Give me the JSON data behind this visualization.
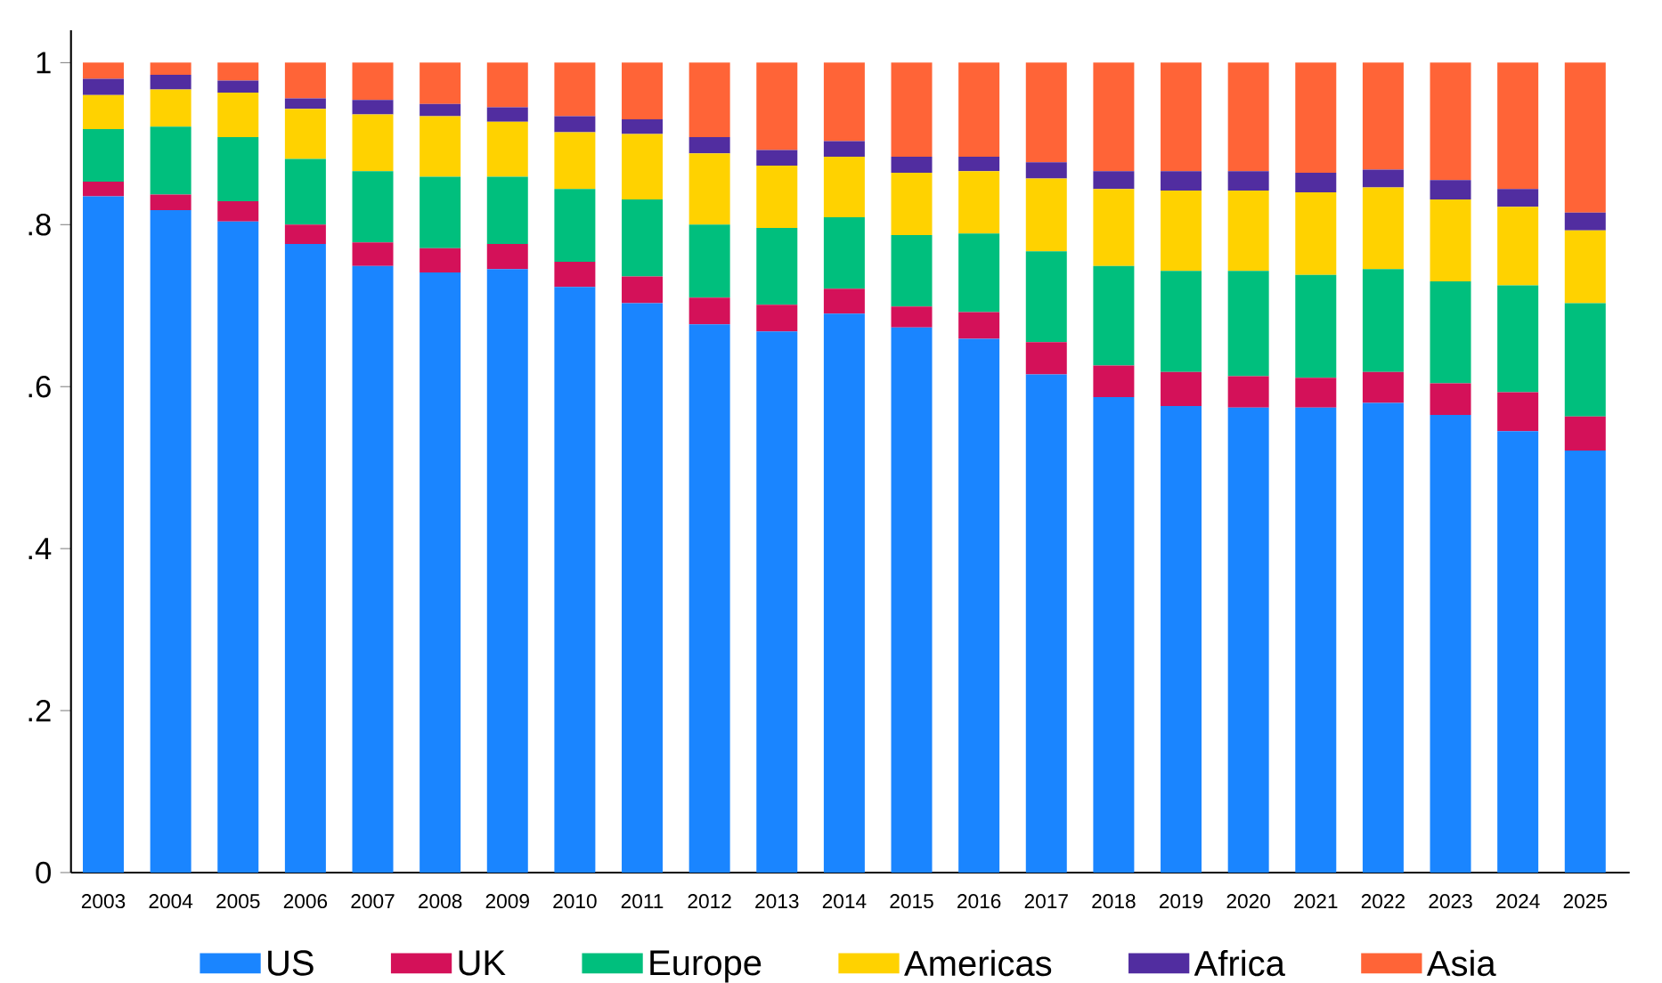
{
  "chart_data": {
    "type": "bar",
    "stacked": true,
    "categories": [
      "2003",
      "2004",
      "2005",
      "2006",
      "2007",
      "2008",
      "2009",
      "2010",
      "2011",
      "2012",
      "2013",
      "2014",
      "2015",
      "2016",
      "2017",
      "2018",
      "2019",
      "2020",
      "2021",
      "2022",
      "2023",
      "2024",
      "2025"
    ],
    "series": [
      {
        "name": "US",
        "color": "#1a85ff",
        "values": [
          0.835,
          0.818,
          0.804,
          0.776,
          0.749,
          0.741,
          0.745,
          0.723,
          0.703,
          0.677,
          0.668,
          0.69,
          0.673,
          0.659,
          0.615,
          0.587,
          0.576,
          0.574,
          0.574,
          0.58,
          0.565,
          0.545,
          0.521
        ]
      },
      {
        "name": "UK",
        "color": "#d41159",
        "values": [
          0.018,
          0.019,
          0.025,
          0.024,
          0.029,
          0.03,
          0.031,
          0.031,
          0.033,
          0.033,
          0.033,
          0.031,
          0.026,
          0.033,
          0.04,
          0.039,
          0.042,
          0.039,
          0.037,
          0.038,
          0.039,
          0.048,
          0.042
        ]
      },
      {
        "name": "Europe",
        "color": "#00bf7d",
        "values": [
          0.065,
          0.084,
          0.079,
          0.081,
          0.088,
          0.088,
          0.083,
          0.09,
          0.095,
          0.09,
          0.095,
          0.088,
          0.088,
          0.097,
          0.112,
          0.123,
          0.125,
          0.13,
          0.127,
          0.127,
          0.126,
          0.132,
          0.14
        ]
      },
      {
        "name": "Americas",
        "color": "#ffd200",
        "values": [
          0.042,
          0.046,
          0.055,
          0.062,
          0.07,
          0.075,
          0.068,
          0.07,
          0.081,
          0.088,
          0.077,
          0.075,
          0.077,
          0.077,
          0.09,
          0.095,
          0.099,
          0.099,
          0.102,
          0.101,
          0.101,
          0.097,
          0.09
        ]
      },
      {
        "name": "Africa",
        "color": "#512da0",
        "values": [
          0.02,
          0.018,
          0.015,
          0.013,
          0.018,
          0.015,
          0.018,
          0.02,
          0.018,
          0.02,
          0.019,
          0.019,
          0.02,
          0.018,
          0.02,
          0.022,
          0.024,
          0.024,
          0.024,
          0.022,
          0.024,
          0.022,
          0.022
        ]
      },
      {
        "name": "Asia",
        "color": "#ff6437",
        "values": [
          0.02,
          0.015,
          0.022,
          0.044,
          0.046,
          0.051,
          0.055,
          0.066,
          0.07,
          0.092,
          0.108,
          0.097,
          0.116,
          0.116,
          0.123,
          0.134,
          0.134,
          0.134,
          0.136,
          0.132,
          0.145,
          0.156,
          0.185
        ]
      }
    ],
    "ylim": [
      0,
      1.04
    ],
    "yticks": [
      0,
      {
        "value": 0.2,
        "label": ".2"
      },
      {
        "value": 0.4,
        "label": ".4"
      },
      {
        "value": 0.6,
        "label": ".6"
      },
      {
        "value": 0.8,
        "label": ".8"
      },
      1
    ],
    "legend": "bottom"
  }
}
